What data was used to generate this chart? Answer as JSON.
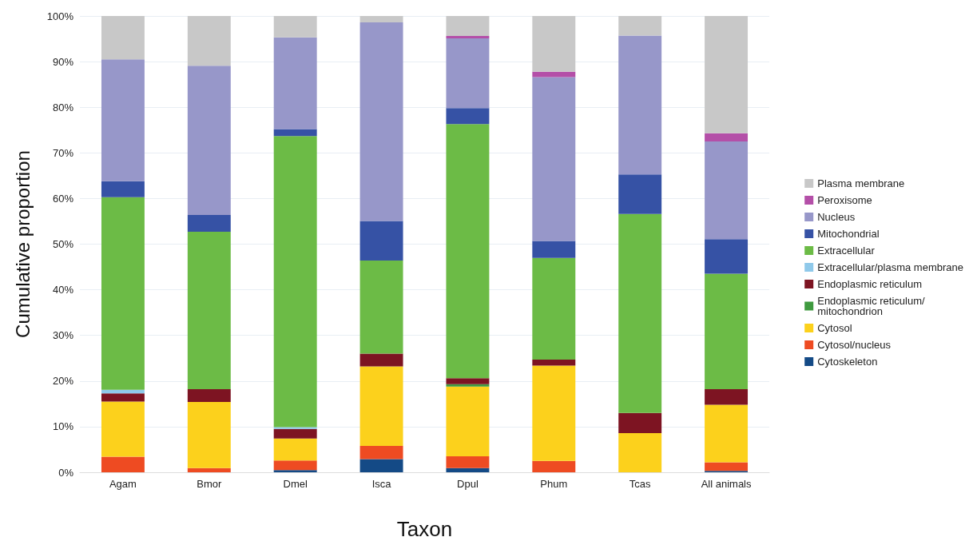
{
  "chart_data": {
    "type": "bar",
    "stacked": true,
    "xlabel": "Taxon",
    "ylabel": "Cumulative proportion",
    "categories": [
      "Agam",
      "Bmor",
      "Dmel",
      "Isca",
      "Dpul",
      "Phum",
      "Tcas",
      "All animals"
    ],
    "ylim": [
      0,
      100
    ],
    "yticks": [
      {
        "value": 0,
        "label": "0%"
      },
      {
        "value": 10,
        "label": "10%"
      },
      {
        "value": 20,
        "label": "20%"
      },
      {
        "value": 30,
        "label": "30%"
      },
      {
        "value": 40,
        "label": "40%"
      },
      {
        "value": 50,
        "label": "50%"
      },
      {
        "value": 60,
        "label": "60%"
      },
      {
        "value": 70,
        "label": "70%"
      },
      {
        "value": 80,
        "label": "80%"
      },
      {
        "value": 90,
        "label": "90%"
      },
      {
        "value": 100,
        "label": "100%"
      }
    ],
    "grid": "y",
    "legend": "right",
    "series": [
      {
        "name": "Cytoskeleton",
        "color": "#144a86",
        "values": [
          0,
          0,
          0.5,
          2.9,
          0.9,
          0,
          0,
          0.3
        ]
      },
      {
        "name": "Cytosol/nucleus",
        "color": "#ee4b22",
        "values": [
          3.4,
          0.9,
          2.1,
          2.9,
          2.6,
          2.5,
          0,
          1.9
        ]
      },
      {
        "name": "Cytosol",
        "color": "#fcd11c",
        "values": [
          12.1,
          14.5,
          4.8,
          17.4,
          15.3,
          20.9,
          8.6,
          12.6
        ]
      },
      {
        "name": "Endoplasmic reticulum/mitochondrion",
        "color": "#3f9a3f",
        "values": [
          0,
          0,
          0,
          0,
          0.5,
          0,
          0,
          0
        ]
      },
      {
        "name": "Endoplasmic reticulum",
        "color": "#7d1422",
        "values": [
          1.8,
          2.8,
          2.1,
          2.8,
          1.3,
          1.3,
          4.4,
          3.4
        ]
      },
      {
        "name": "Extracellular/plasma membrane",
        "color": "#8fc9ea",
        "values": [
          0.8,
          0,
          0.4,
          0,
          0,
          0,
          0,
          0
        ]
      },
      {
        "name": "Extracellular",
        "color": "#6cbb46",
        "values": [
          42.2,
          34.5,
          63.8,
          20.4,
          55.7,
          22.3,
          43.6,
          25.3
        ]
      },
      {
        "name": "Mitochondrial",
        "color": "#3652a5",
        "values": [
          3.5,
          3.7,
          1.5,
          8.7,
          3.5,
          3.7,
          8.7,
          7.6
        ]
      },
      {
        "name": "Nucleus",
        "color": "#9797c9",
        "values": [
          26.7,
          32.7,
          20.1,
          43.5,
          15.3,
          35.9,
          30.4,
          21.4
        ]
      },
      {
        "name": "Peroxisome",
        "color": "#b44fa8",
        "values": [
          0,
          0,
          0,
          0,
          0.5,
          1.2,
          0,
          1.8
        ]
      },
      {
        "name": "Plasma membrane",
        "color": "#c8c8c8",
        "values": [
          9.5,
          10.9,
          4.7,
          1.4,
          4.4,
          12.2,
          4.3,
          25.7
        ]
      }
    ]
  }
}
